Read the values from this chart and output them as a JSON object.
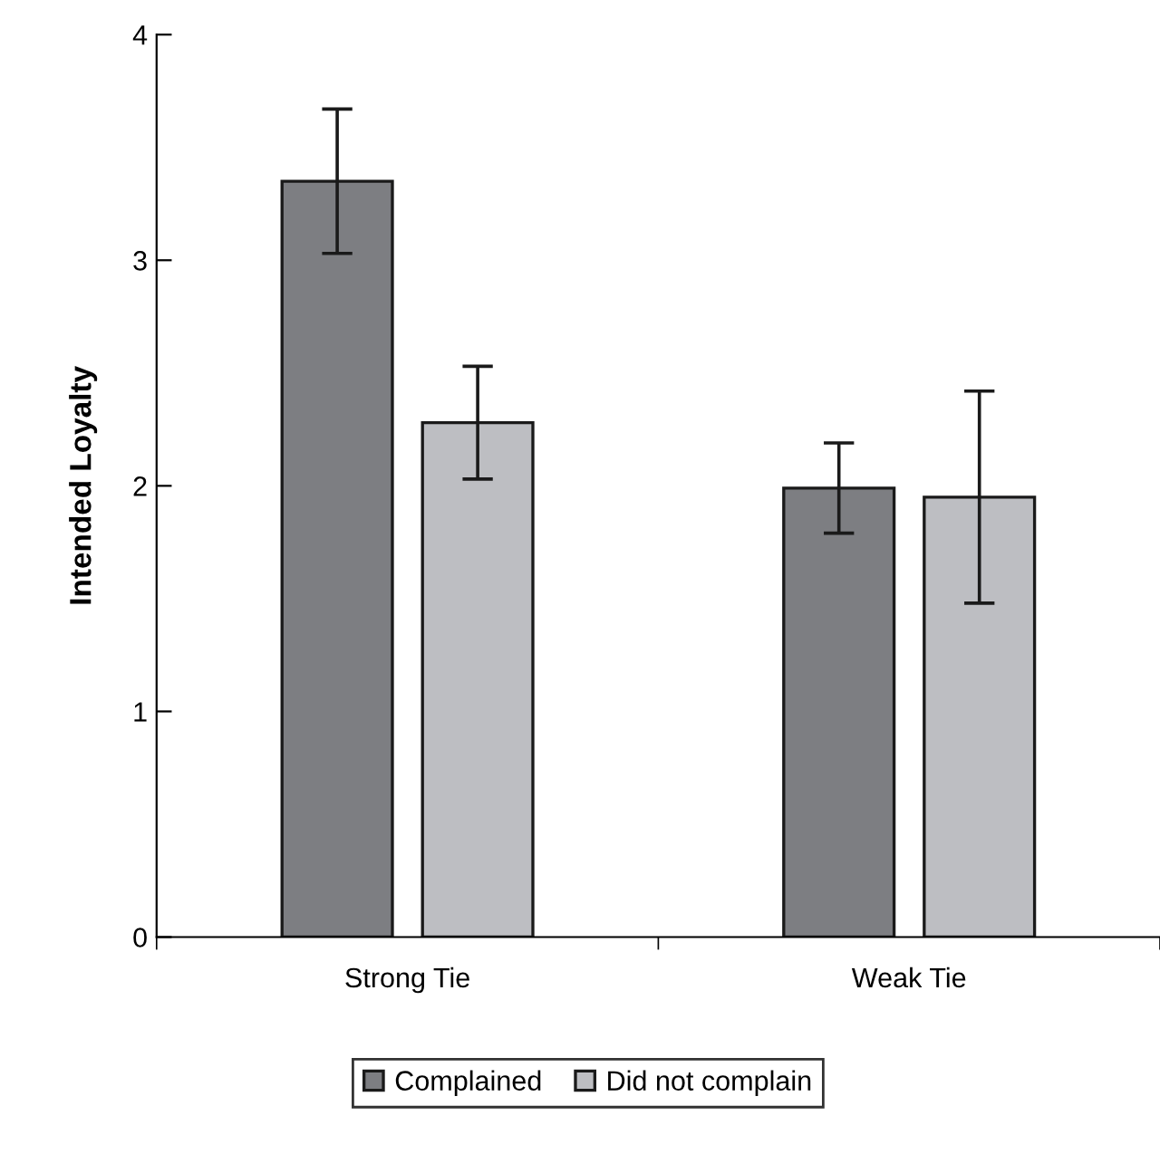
{
  "chart_data": {
    "type": "bar",
    "ylabel": "Intended Loyalty",
    "categories": [
      "Strong Tie",
      "Weak Tie"
    ],
    "series": [
      {
        "name": "Complained",
        "color": "#7d7e82",
        "values": [
          3.35,
          1.99
        ],
        "errors": [
          [
            3.03,
            3.67
          ],
          [
            1.79,
            2.19
          ]
        ]
      },
      {
        "name": "Did not complain",
        "color": "#bdbec2",
        "values": [
          2.28,
          1.95
        ],
        "errors": [
          [
            2.03,
            2.53
          ],
          [
            1.48,
            2.42
          ]
        ]
      }
    ],
    "ylim": [
      0,
      4
    ],
    "yticks": [
      0,
      1,
      2,
      3,
      4
    ],
    "grid": false,
    "legend": "bottom"
  }
}
